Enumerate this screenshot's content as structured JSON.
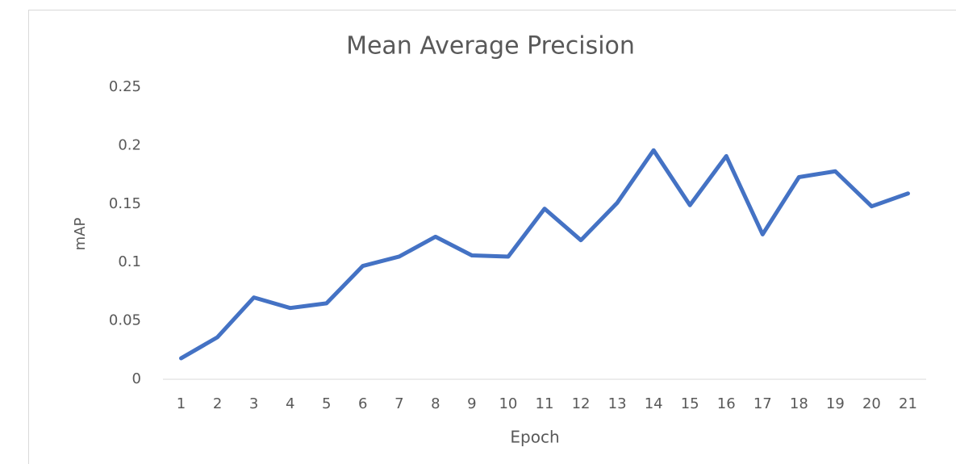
{
  "chart_data": {
    "type": "line",
    "title": "Mean Average Precision",
    "x_label": "Epoch",
    "y_label": "mAP",
    "categories": [
      "1",
      "2",
      "3",
      "4",
      "5",
      "6",
      "7",
      "8",
      "9",
      "10",
      "11",
      "12",
      "13",
      "14",
      "15",
      "16",
      "17",
      "18",
      "19",
      "20",
      "21"
    ],
    "values": [
      0.018,
      0.036,
      0.07,
      0.061,
      0.065,
      0.097,
      0.105,
      0.122,
      0.106,
      0.105,
      0.146,
      0.119,
      0.151,
      0.196,
      0.149,
      0.191,
      0.124,
      0.173,
      0.178,
      0.148,
      0.159
    ],
    "color": "#4472c4",
    "ylim": [
      0,
      0.25
    ],
    "yticks": [
      0,
      0.05,
      0.1,
      0.15,
      0.2,
      0.25
    ],
    "grid": false
  }
}
